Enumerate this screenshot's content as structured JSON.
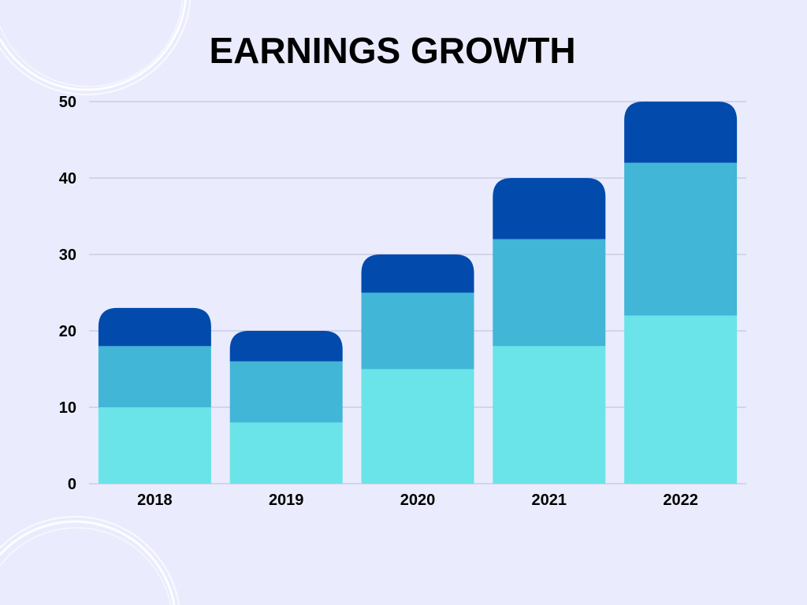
{
  "chart_data": {
    "type": "bar",
    "stacked": true,
    "title": "EARNINGS GROWTH",
    "xlabel": "",
    "ylabel": "",
    "categories": [
      "2018",
      "2019",
      "2020",
      "2021",
      "2022"
    ],
    "series": [
      {
        "values": [
          10,
          8,
          15,
          18,
          22
        ],
        "color": "#6ae4e8"
      },
      {
        "values": [
          8,
          8,
          10,
          14,
          20
        ],
        "color": "#42b6d6"
      },
      {
        "values": [
          5,
          4,
          5,
          8,
          8
        ],
        "color": "#024bac"
      }
    ],
    "ylim": [
      0,
      50
    ],
    "yticks": [
      "0",
      "10",
      "20",
      "30",
      "40",
      "50"
    ],
    "grid": true,
    "legend": "none",
    "background": "#eaecfd"
  }
}
